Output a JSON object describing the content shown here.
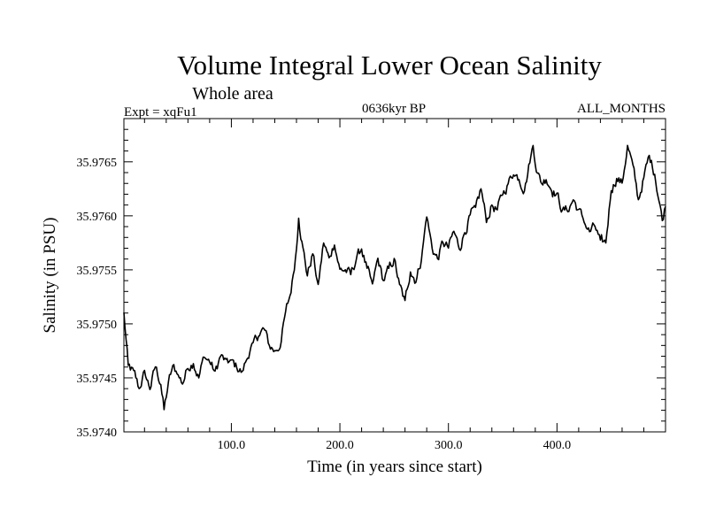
{
  "chart_data": {
    "type": "line",
    "title": "Volume Integral Lower Ocean Salinity",
    "subtitle": "Whole area",
    "left_label": "Expt = xqFu1",
    "center_label": "0636kyr BP",
    "right_label": "ALL_MONTHS",
    "xlabel": "Time (in years since start)",
    "ylabel": "Salinity (in PSU)",
    "xlim": [
      1,
      500
    ],
    "ylim": [
      35.974,
      35.9769
    ],
    "x_ticks": [
      100,
      200,
      300,
      400
    ],
    "x_tick_labels": [
      "100.0",
      "200.0",
      "300.0",
      "400.0"
    ],
    "y_ticks": [
      35.974,
      35.9745,
      35.975,
      35.9755,
      35.976,
      35.9765
    ],
    "y_tick_labels": [
      "35.9740",
      "35.9745",
      "35.9750",
      "35.9755",
      "35.9760",
      "35.9765"
    ],
    "grid": false,
    "color": "#000000",
    "series": [
      {
        "name": "Salinity",
        "x": [
          1,
          5,
          10,
          15,
          20,
          25,
          30,
          35,
          38,
          42,
          46,
          50,
          55,
          60,
          65,
          70,
          75,
          80,
          85,
          90,
          95,
          100,
          105,
          110,
          115,
          120,
          125,
          130,
          135,
          140,
          145,
          150,
          155,
          160,
          162,
          166,
          170,
          175,
          180,
          185,
          190,
          195,
          200,
          205,
          210,
          215,
          220,
          225,
          230,
          235,
          240,
          245,
          250,
          255,
          260,
          265,
          270,
          275,
          280,
          285,
          290,
          295,
          300,
          305,
          310,
          315,
          320,
          325,
          330,
          335,
          340,
          345,
          350,
          355,
          360,
          365,
          370,
          375,
          378,
          382,
          386,
          390,
          395,
          400,
          405,
          410,
          415,
          420,
          425,
          430,
          435,
          440,
          445,
          450,
          455,
          460,
          465,
          470,
          475,
          480,
          485,
          490,
          495,
          497,
          500
        ],
        "values": [
          35.9751,
          35.9746,
          35.97455,
          35.9744,
          35.97455,
          35.9744,
          35.9746,
          35.97445,
          35.9742,
          35.97445,
          35.9746,
          35.97455,
          35.97445,
          35.9746,
          35.97465,
          35.9745,
          35.9747,
          35.97465,
          35.97455,
          35.9747,
          35.97465,
          35.97465,
          35.9746,
          35.97455,
          35.9747,
          35.9748,
          35.9749,
          35.97495,
          35.9748,
          35.97475,
          35.9748,
          35.9751,
          35.9753,
          35.9757,
          35.976,
          35.9757,
          35.97545,
          35.97565,
          35.97535,
          35.97575,
          35.9756,
          35.97575,
          35.9755,
          35.9755,
          35.97545,
          35.9756,
          35.9757,
          35.9755,
          35.97535,
          35.9756,
          35.9754,
          35.9755,
          35.9756,
          35.97535,
          35.9752,
          35.9755,
          35.9754,
          35.9756,
          35.976,
          35.9757,
          35.9756,
          35.97575,
          35.9757,
          35.97585,
          35.9757,
          35.97585,
          35.976,
          35.97605,
          35.97625,
          35.97595,
          35.9761,
          35.97605,
          35.9762,
          35.9763,
          35.9764,
          35.97635,
          35.97625,
          35.9765,
          35.97665,
          35.9764,
          35.9763,
          35.97635,
          35.97625,
          35.9762,
          35.97605,
          35.97605,
          35.97615,
          35.97605,
          35.97595,
          35.97585,
          35.9759,
          35.97575,
          35.97575,
          35.97625,
          35.97635,
          35.9763,
          35.97665,
          35.97645,
          35.97615,
          35.97635,
          35.97655,
          35.9764,
          35.9761,
          35.97595,
          35.9761
        ]
      }
    ]
  }
}
